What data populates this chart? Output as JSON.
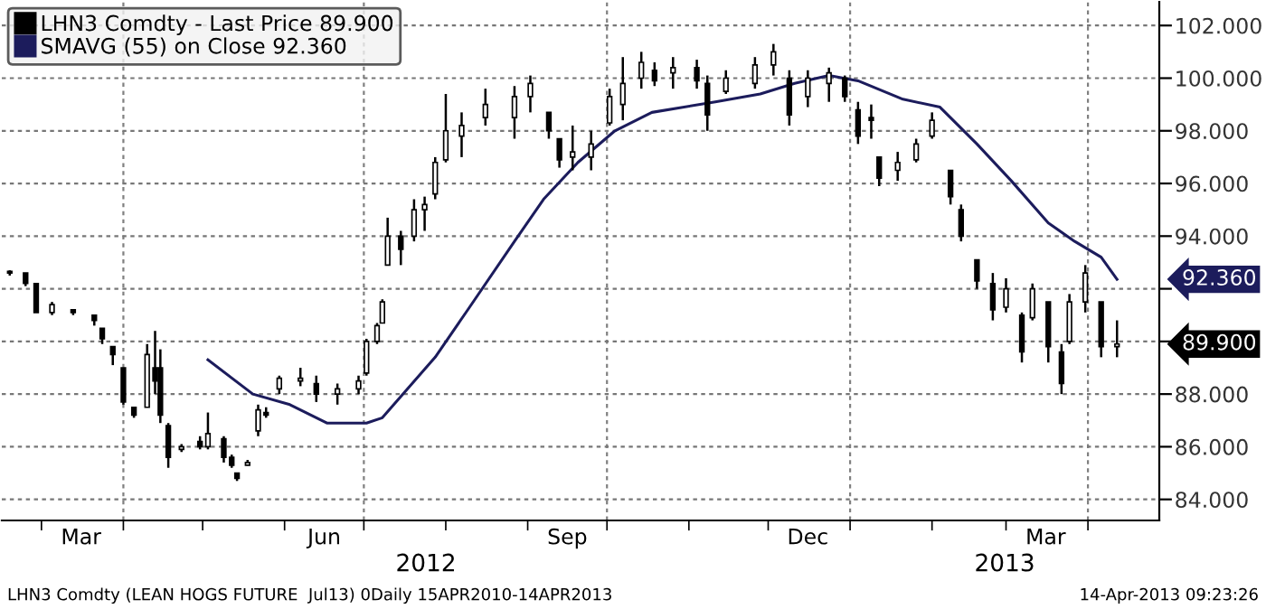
{
  "chart_data": {
    "type": "candlestick",
    "series": [
      {
        "name": "LHN3 Comdty - Last Price 89.900",
        "color": "#000000",
        "x": [
          "2012-02-18",
          "2012-02-24",
          "2012-02-28",
          "2012-03-05",
          "2012-03-13",
          "2012-03-21",
          "2012-03-24",
          "2012-03-28",
          "2012-04-01",
          "2012-04-05",
          "2012-04-10",
          "2012-04-13",
          "2012-04-15",
          "2012-04-18",
          "2012-04-23",
          "2012-04-30",
          "2012-05-03",
          "2012-05-09",
          "2012-05-12",
          "2012-05-14",
          "2012-05-18",
          "2012-05-22",
          "2012-05-25",
          "2012-05-30",
          "2012-06-07",
          "2012-06-13",
          "2012-06-21",
          "2012-06-29",
          "2012-07-02",
          "2012-07-06",
          "2012-07-08",
          "2012-07-10",
          "2012-07-15",
          "2012-07-20",
          "2012-07-24",
          "2012-07-28",
          "2012-08-01",
          "2012-08-07",
          "2012-08-16",
          "2012-08-27",
          "2012-09-02",
          "2012-09-09",
          "2012-09-13",
          "2012-09-18",
          "2012-09-25",
          "2012-10-02",
          "2012-10-07",
          "2012-10-14",
          "2012-10-19",
          "2012-10-26",
          "2012-11-04",
          "2012-11-08",
          "2012-11-15",
          "2012-11-26",
          "2012-12-03",
          "2012-12-09",
          "2012-12-16",
          "2012-12-24",
          "2012-12-30",
          "2013-01-04",
          "2013-01-09",
          "2013-01-12",
          "2013-01-19",
          "2013-01-26",
          "2013-02-01",
          "2013-02-08",
          "2013-02-12",
          "2013-02-18",
          "2013-02-24",
          "2013-03-01",
          "2013-03-07",
          "2013-03-11",
          "2013-03-17",
          "2013-03-22",
          "2013-03-25",
          "2013-03-31",
          "2013-04-06",
          "2013-04-12"
        ],
        "ohlc": [
          [
            92.6,
            92.7,
            92.5,
            92.6
          ],
          [
            92.6,
            92.6,
            92.1,
            92.2
          ],
          [
            92.2,
            92.2,
            91.1,
            91.1
          ],
          [
            91.1,
            91.5,
            91.0,
            91.4
          ],
          [
            91.2,
            91.2,
            91.0,
            91.1
          ],
          [
            91.0,
            91.0,
            90.6,
            90.8
          ],
          [
            90.5,
            90.5,
            89.9,
            90.1
          ],
          [
            89.8,
            89.8,
            89.1,
            89.5
          ],
          [
            89.0,
            89.0,
            87.6,
            87.7
          ],
          [
            87.5,
            87.5,
            87.1,
            87.2
          ],
          [
            87.5,
            89.9,
            87.5,
            89.5
          ],
          [
            89.0,
            90.4,
            88.0,
            88.5
          ],
          [
            89.0,
            89.7,
            86.9,
            87.2
          ],
          [
            86.8,
            86.9,
            85.2,
            85.6
          ],
          [
            85.9,
            86.1,
            85.8,
            86.0
          ],
          [
            86.2,
            86.4,
            85.9,
            86.0
          ],
          [
            86.0,
            87.3,
            85.9,
            86.5
          ],
          [
            86.3,
            86.4,
            85.4,
            85.6
          ],
          [
            85.6,
            85.7,
            85.2,
            85.3
          ],
          [
            85.0,
            85.0,
            84.7,
            84.8
          ],
          [
            85.3,
            85.5,
            85.3,
            85.4
          ],
          [
            86.6,
            87.6,
            86.4,
            87.4
          ],
          [
            87.3,
            87.5,
            87.1,
            87.2
          ],
          [
            88.2,
            88.7,
            88.0,
            88.6
          ],
          [
            88.5,
            89.0,
            88.3,
            88.6
          ],
          [
            88.4,
            88.7,
            87.7,
            88.0
          ],
          [
            88.0,
            88.4,
            87.6,
            88.2
          ],
          [
            88.2,
            88.7,
            88.0,
            88.5
          ],
          [
            88.8,
            90.1,
            88.7,
            90.0
          ],
          [
            90.0,
            90.7,
            89.9,
            90.6
          ],
          [
            90.7,
            91.6,
            90.7,
            91.5
          ],
          [
            92.9,
            94.7,
            92.9,
            94.0
          ],
          [
            94.0,
            94.2,
            92.9,
            93.5
          ],
          [
            94.0,
            95.4,
            93.8,
            95.0
          ],
          [
            95.0,
            95.5,
            94.2,
            95.2
          ],
          [
            95.6,
            97.0,
            95.4,
            96.8
          ],
          [
            96.9,
            99.4,
            96.8,
            98.0
          ],
          [
            97.8,
            98.7,
            97.0,
            98.2
          ],
          [
            98.5,
            99.6,
            98.2,
            99.0
          ],
          [
            98.5,
            99.7,
            97.7,
            99.3
          ],
          [
            99.3,
            100.1,
            98.7,
            99.8
          ],
          [
            98.7,
            98.7,
            97.7,
            98.0
          ],
          [
            97.7,
            97.7,
            96.6,
            96.9
          ],
          [
            97.0,
            98.2,
            96.5,
            97.2
          ],
          [
            97.0,
            98.0,
            96.5,
            97.5
          ],
          [
            98.3,
            99.6,
            98.2,
            99.3
          ],
          [
            99.0,
            100.8,
            98.4,
            99.8
          ],
          [
            100.0,
            101.0,
            99.6,
            100.6
          ],
          [
            100.3,
            100.6,
            99.7,
            99.9
          ],
          [
            100.2,
            100.8,
            99.6,
            100.4
          ],
          [
            100.4,
            100.7,
            99.6,
            99.9
          ],
          [
            99.8,
            100.1,
            98.0,
            98.6
          ],
          [
            99.5,
            100.3,
            99.4,
            100.0
          ],
          [
            99.8,
            100.8,
            99.6,
            100.5
          ],
          [
            100.5,
            101.3,
            100.1,
            101.0
          ],
          [
            100.0,
            100.3,
            98.2,
            98.6
          ],
          [
            99.3,
            100.3,
            98.9,
            100.0
          ],
          [
            99.8,
            100.4,
            99.1,
            100.2
          ],
          [
            100.0,
            100.1,
            99.1,
            99.3
          ],
          [
            98.8,
            99.1,
            97.5,
            97.8
          ],
          [
            98.5,
            99.0,
            97.7,
            98.4
          ],
          [
            97.0,
            97.0,
            95.9,
            96.2
          ],
          [
            96.5,
            97.2,
            96.1,
            96.8
          ],
          [
            96.9,
            97.7,
            96.8,
            97.5
          ],
          [
            97.8,
            98.7,
            97.7,
            98.4
          ],
          [
            96.5,
            96.5,
            95.2,
            95.5
          ],
          [
            95.0,
            95.2,
            93.8,
            94.0
          ],
          [
            93.1,
            93.1,
            92.0,
            92.3
          ],
          [
            92.2,
            92.6,
            90.8,
            91.2
          ],
          [
            91.3,
            92.4,
            91.1,
            92.0
          ],
          [
            91.0,
            91.1,
            89.2,
            89.6
          ],
          [
            90.9,
            92.2,
            90.8,
            92.0
          ],
          [
            91.5,
            91.5,
            89.2,
            89.8
          ],
          [
            89.6,
            89.9,
            88.0,
            88.4
          ],
          [
            90.0,
            91.8,
            89.9,
            91.5
          ],
          [
            91.5,
            92.9,
            91.1,
            92.6
          ],
          [
            91.5,
            91.5,
            89.4,
            89.8
          ],
          [
            89.8,
            90.8,
            89.4,
            89.9
          ]
        ]
      },
      {
        "name": "SMAVG (55) on Close 92.360",
        "type": "line",
        "color": "#1c1c5c",
        "x": [
          "2012-05-03",
          "2012-05-20",
          "2012-06-03",
          "2012-06-17",
          "2012-07-02",
          "2012-07-08",
          "2012-07-28",
          "2012-08-10",
          "2012-08-27",
          "2012-09-07",
          "2012-09-20",
          "2012-10-04",
          "2012-10-18",
          "2012-11-11",
          "2012-11-28",
          "2012-12-11",
          "2012-12-24",
          "2013-01-04",
          "2013-01-21",
          "2013-02-04",
          "2013-02-18",
          "2013-03-03",
          "2013-03-17",
          "2013-03-27",
          "2013-04-06",
          "2013-04-12"
        ],
        "values": [
          89.3,
          88.0,
          87.6,
          86.9,
          86.9,
          87.1,
          89.4,
          91.3,
          93.8,
          95.4,
          96.8,
          98.0,
          98.7,
          99.1,
          99.4,
          99.8,
          100.1,
          99.9,
          99.2,
          98.9,
          97.5,
          96.1,
          94.5,
          93.8,
          93.2,
          92.36
        ]
      }
    ],
    "xlim": [
      "2012-02-15",
      "2013-04-28"
    ],
    "xticks": [
      {
        "value": "2012-03-01",
        "label": null
      },
      {
        "value": "2012-03-16",
        "label": "Mar"
      },
      {
        "value": "2012-04-01",
        "label": null
      },
      {
        "value": "2012-05-01",
        "label": null
      },
      {
        "value": "2012-06-01",
        "label": null
      },
      {
        "value": "2012-06-16",
        "label": "Jun"
      },
      {
        "value": "2012-07-01",
        "label": null
      },
      {
        "value": "2012-08-01",
        "label": null
      },
      {
        "value": "2012-09-01",
        "label": null
      },
      {
        "value": "2012-09-16",
        "label": "Sep"
      },
      {
        "value": "2012-10-01",
        "label": null
      },
      {
        "value": "2012-11-01",
        "label": null
      },
      {
        "value": "2012-12-01",
        "label": null
      },
      {
        "value": "2012-12-16",
        "label": "Dec"
      },
      {
        "value": "2013-01-01",
        "label": null
      },
      {
        "value": "2013-02-01",
        "label": null
      },
      {
        "value": "2013-03-01",
        "label": null
      },
      {
        "value": "2013-03-16",
        "label": "Mar"
      },
      {
        "value": "2013-04-01",
        "label": null
      }
    ],
    "ylim": [
      83.2,
      102.9
    ],
    "yticks": [
      {
        "value": 84,
        "label": "84.000"
      },
      {
        "value": 86,
        "label": "86.000"
      },
      {
        "value": 88,
        "label": "88.000"
      },
      {
        "value": 90,
        "label": null
      },
      {
        "value": 92,
        "label": null
      },
      {
        "value": 94,
        "label": "94.000"
      },
      {
        "value": 96,
        "label": "96.000"
      },
      {
        "value": 98,
        "label": "98.000"
      },
      {
        "value": 100,
        "label": "100.000"
      },
      {
        "value": 102,
        "label": "102.000"
      }
    ],
    "ref_lines": [
      {
        "axis": "x",
        "value": "2012-04-01",
        "line_style": "dashed",
        "color": "#808080"
      },
      {
        "axis": "x",
        "value": "2012-07-01",
        "line_style": "dashed",
        "color": "#808080"
      },
      {
        "axis": "x",
        "value": "2012-10-01",
        "line_style": "dashed",
        "color": "#808080"
      },
      {
        "axis": "x",
        "value": "2013-01-01",
        "line_style": "dashed",
        "color": "#808080"
      },
      {
        "axis": "x",
        "value": "2013-04-01",
        "line_style": "dashed",
        "color": "#808080"
      }
    ],
    "grid": "y",
    "legend": "top left",
    "annotations": [
      "89.900",
      "92.360",
      "2012",
      "2013",
      "LHN3 Comdty (LEAN HOGS FUTURE  Jul13) 0Daily 15APR2010-14APR2013",
      "14-Apr-2013 09:23:26"
    ]
  }
}
